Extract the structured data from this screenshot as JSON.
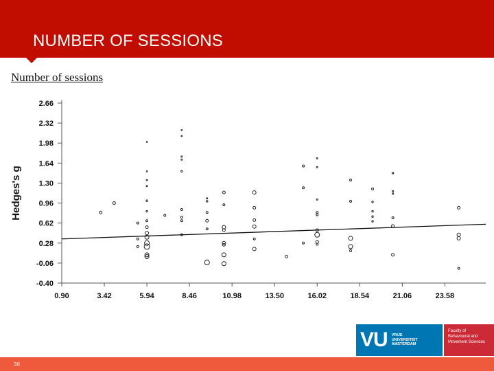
{
  "header": {
    "title": "NUMBER OF SESSIONS"
  },
  "chart_heading": "Number of sessions",
  "logo": {
    "mark": "VU",
    "university_lines": [
      "VRIJE",
      "UNIVERSITEIT",
      "AMSTERDAM"
    ],
    "faculty_lines": [
      "Faculty of",
      "Behavioural and",
      "Movement Sciences"
    ]
  },
  "footer": {
    "page_number": "36"
  },
  "colors": {
    "header": "#c00d00",
    "footer": "#f05a3c",
    "vu_blue": "#0077b3",
    "faculty_red": "#cc2a36"
  },
  "chart_data": {
    "type": "scatter",
    "title": "",
    "xlabel": "",
    "ylabel": "Hedges's g",
    "x_ticks": [
      "0.90",
      "3.42",
      "5.94",
      "8.46",
      "10.98",
      "13.50",
      "16.02",
      "18.54",
      "21.06",
      "23.58"
    ],
    "y_ticks": [
      "-0.40",
      "-0.06",
      "0.28",
      "0.62",
      "0.96",
      "1.30",
      "1.64",
      "1.98",
      "2.32",
      "2.66"
    ],
    "xlim": [
      0.9,
      26.0
    ],
    "ylim": [
      -0.4,
      2.66
    ],
    "grid": false,
    "regression_line": {
      "x": [
        0.9,
        26.0
      ],
      "y": [
        0.35,
        0.6
      ]
    },
    "points": [
      {
        "x": 3.2,
        "y": 0.8,
        "r": 2
      },
      {
        "x": 4.0,
        "y": 0.96,
        "r": 2
      },
      {
        "x": 5.4,
        "y": 0.62,
        "r": 1.5
      },
      {
        "x": 5.4,
        "y": 0.35,
        "r": 1.5
      },
      {
        "x": 5.4,
        "y": 0.22,
        "r": 1.5
      },
      {
        "x": 5.94,
        "y": 2.0,
        "r": 0.8
      },
      {
        "x": 5.94,
        "y": 1.5,
        "r": 0.8
      },
      {
        "x": 5.94,
        "y": 1.35,
        "r": 1
      },
      {
        "x": 5.94,
        "y": 1.25,
        "r": 1
      },
      {
        "x": 5.94,
        "y": 1.0,
        "r": 1.2
      },
      {
        "x": 5.94,
        "y": 0.82,
        "r": 1.2
      },
      {
        "x": 5.94,
        "y": 0.66,
        "r": 1.5
      },
      {
        "x": 5.94,
        "y": 0.55,
        "r": 2
      },
      {
        "x": 5.94,
        "y": 0.45,
        "r": 2.5
      },
      {
        "x": 5.94,
        "y": 0.38,
        "r": 3
      },
      {
        "x": 5.94,
        "y": 0.28,
        "r": 3.5
      },
      {
        "x": 5.94,
        "y": 0.22,
        "r": 4
      },
      {
        "x": 5.94,
        "y": 0.08,
        "r": 3
      },
      {
        "x": 5.94,
        "y": 0.05,
        "r": 3
      },
      {
        "x": 7.0,
        "y": 0.75,
        "r": 1.5
      },
      {
        "x": 8.0,
        "y": 2.2,
        "r": 0.8
      },
      {
        "x": 8.0,
        "y": 2.1,
        "r": 0.8
      },
      {
        "x": 8.0,
        "y": 1.75,
        "r": 1
      },
      {
        "x": 8.0,
        "y": 1.7,
        "r": 1
      },
      {
        "x": 8.0,
        "y": 1.5,
        "r": 1.2
      },
      {
        "x": 8.0,
        "y": 0.85,
        "r": 1.5
      },
      {
        "x": 8.0,
        "y": 0.72,
        "r": 1.5
      },
      {
        "x": 8.0,
        "y": 0.66,
        "r": 1.5
      },
      {
        "x": 8.0,
        "y": 0.42,
        "r": 1.5
      },
      {
        "x": 9.5,
        "y": 1.04,
        "r": 1
      },
      {
        "x": 9.5,
        "y": 0.99,
        "r": 1.2
      },
      {
        "x": 9.5,
        "y": 0.8,
        "r": 1.5
      },
      {
        "x": 9.5,
        "y": 0.66,
        "r": 2
      },
      {
        "x": 9.5,
        "y": 0.52,
        "r": 1.5
      },
      {
        "x": 9.5,
        "y": -0.05,
        "r": 3.5
      },
      {
        "x": 10.5,
        "y": 1.14,
        "r": 2
      },
      {
        "x": 10.5,
        "y": 0.93,
        "r": 1.5
      },
      {
        "x": 10.5,
        "y": 0.55,
        "r": 2.5
      },
      {
        "x": 10.5,
        "y": 0.5,
        "r": 2
      },
      {
        "x": 10.5,
        "y": 0.28,
        "r": 2.5
      },
      {
        "x": 10.5,
        "y": 0.25,
        "r": 2
      },
      {
        "x": 10.5,
        "y": 0.08,
        "r": 3
      },
      {
        "x": 10.5,
        "y": -0.07,
        "r": 3
      },
      {
        "x": 12.3,
        "y": 1.14,
        "r": 2.5
      },
      {
        "x": 12.3,
        "y": 0.88,
        "r": 2
      },
      {
        "x": 12.3,
        "y": 0.67,
        "r": 2
      },
      {
        "x": 12.3,
        "y": 0.56,
        "r": 2.5
      },
      {
        "x": 12.3,
        "y": 0.35,
        "r": 1.5
      },
      {
        "x": 12.3,
        "y": 0.18,
        "r": 2.5
      },
      {
        "x": 14.2,
        "y": 0.05,
        "r": 2
      },
      {
        "x": 15.2,
        "y": 1.59,
        "r": 1.5
      },
      {
        "x": 15.2,
        "y": 1.22,
        "r": 1.5
      },
      {
        "x": 15.2,
        "y": 0.28,
        "r": 1.5
      },
      {
        "x": 16.02,
        "y": 1.72,
        "r": 1
      },
      {
        "x": 16.02,
        "y": 1.57,
        "r": 1
      },
      {
        "x": 16.02,
        "y": 1.02,
        "r": 1
      },
      {
        "x": 16.02,
        "y": 0.8,
        "r": 1.5
      },
      {
        "x": 16.02,
        "y": 0.76,
        "r": 1.5
      },
      {
        "x": 16.02,
        "y": 0.5,
        "r": 2
      },
      {
        "x": 16.02,
        "y": 0.42,
        "r": 3.5
      },
      {
        "x": 16.02,
        "y": 0.3,
        "r": 2
      },
      {
        "x": 16.02,
        "y": 0.26,
        "r": 1.5
      },
      {
        "x": 18.0,
        "y": 1.35,
        "r": 1.5
      },
      {
        "x": 18.0,
        "y": 0.99,
        "r": 1.5
      },
      {
        "x": 18.0,
        "y": 0.36,
        "r": 3
      },
      {
        "x": 18.0,
        "y": 0.22,
        "r": 3
      },
      {
        "x": 18.0,
        "y": 0.15,
        "r": 1.5
      },
      {
        "x": 19.3,
        "y": 1.2,
        "r": 1.5
      },
      {
        "x": 19.3,
        "y": 0.98,
        "r": 1.2
      },
      {
        "x": 19.3,
        "y": 0.82,
        "r": 1.2
      },
      {
        "x": 19.3,
        "y": 0.73,
        "r": 1.2
      },
      {
        "x": 19.3,
        "y": 0.65,
        "r": 1.2
      },
      {
        "x": 20.5,
        "y": 1.47,
        "r": 1.2
      },
      {
        "x": 20.5,
        "y": 1.16,
        "r": 1
      },
      {
        "x": 20.5,
        "y": 1.12,
        "r": 1
      },
      {
        "x": 20.5,
        "y": 0.71,
        "r": 1.5
      },
      {
        "x": 20.5,
        "y": 0.57,
        "r": 2
      },
      {
        "x": 20.5,
        "y": 0.08,
        "r": 2
      },
      {
        "x": 24.4,
        "y": 0.88,
        "r": 2
      },
      {
        "x": 24.4,
        "y": 0.42,
        "r": 2.5
      },
      {
        "x": 24.4,
        "y": 0.36,
        "r": 2.5
      },
      {
        "x": 24.4,
        "y": -0.15,
        "r": 1.5
      }
    ]
  }
}
